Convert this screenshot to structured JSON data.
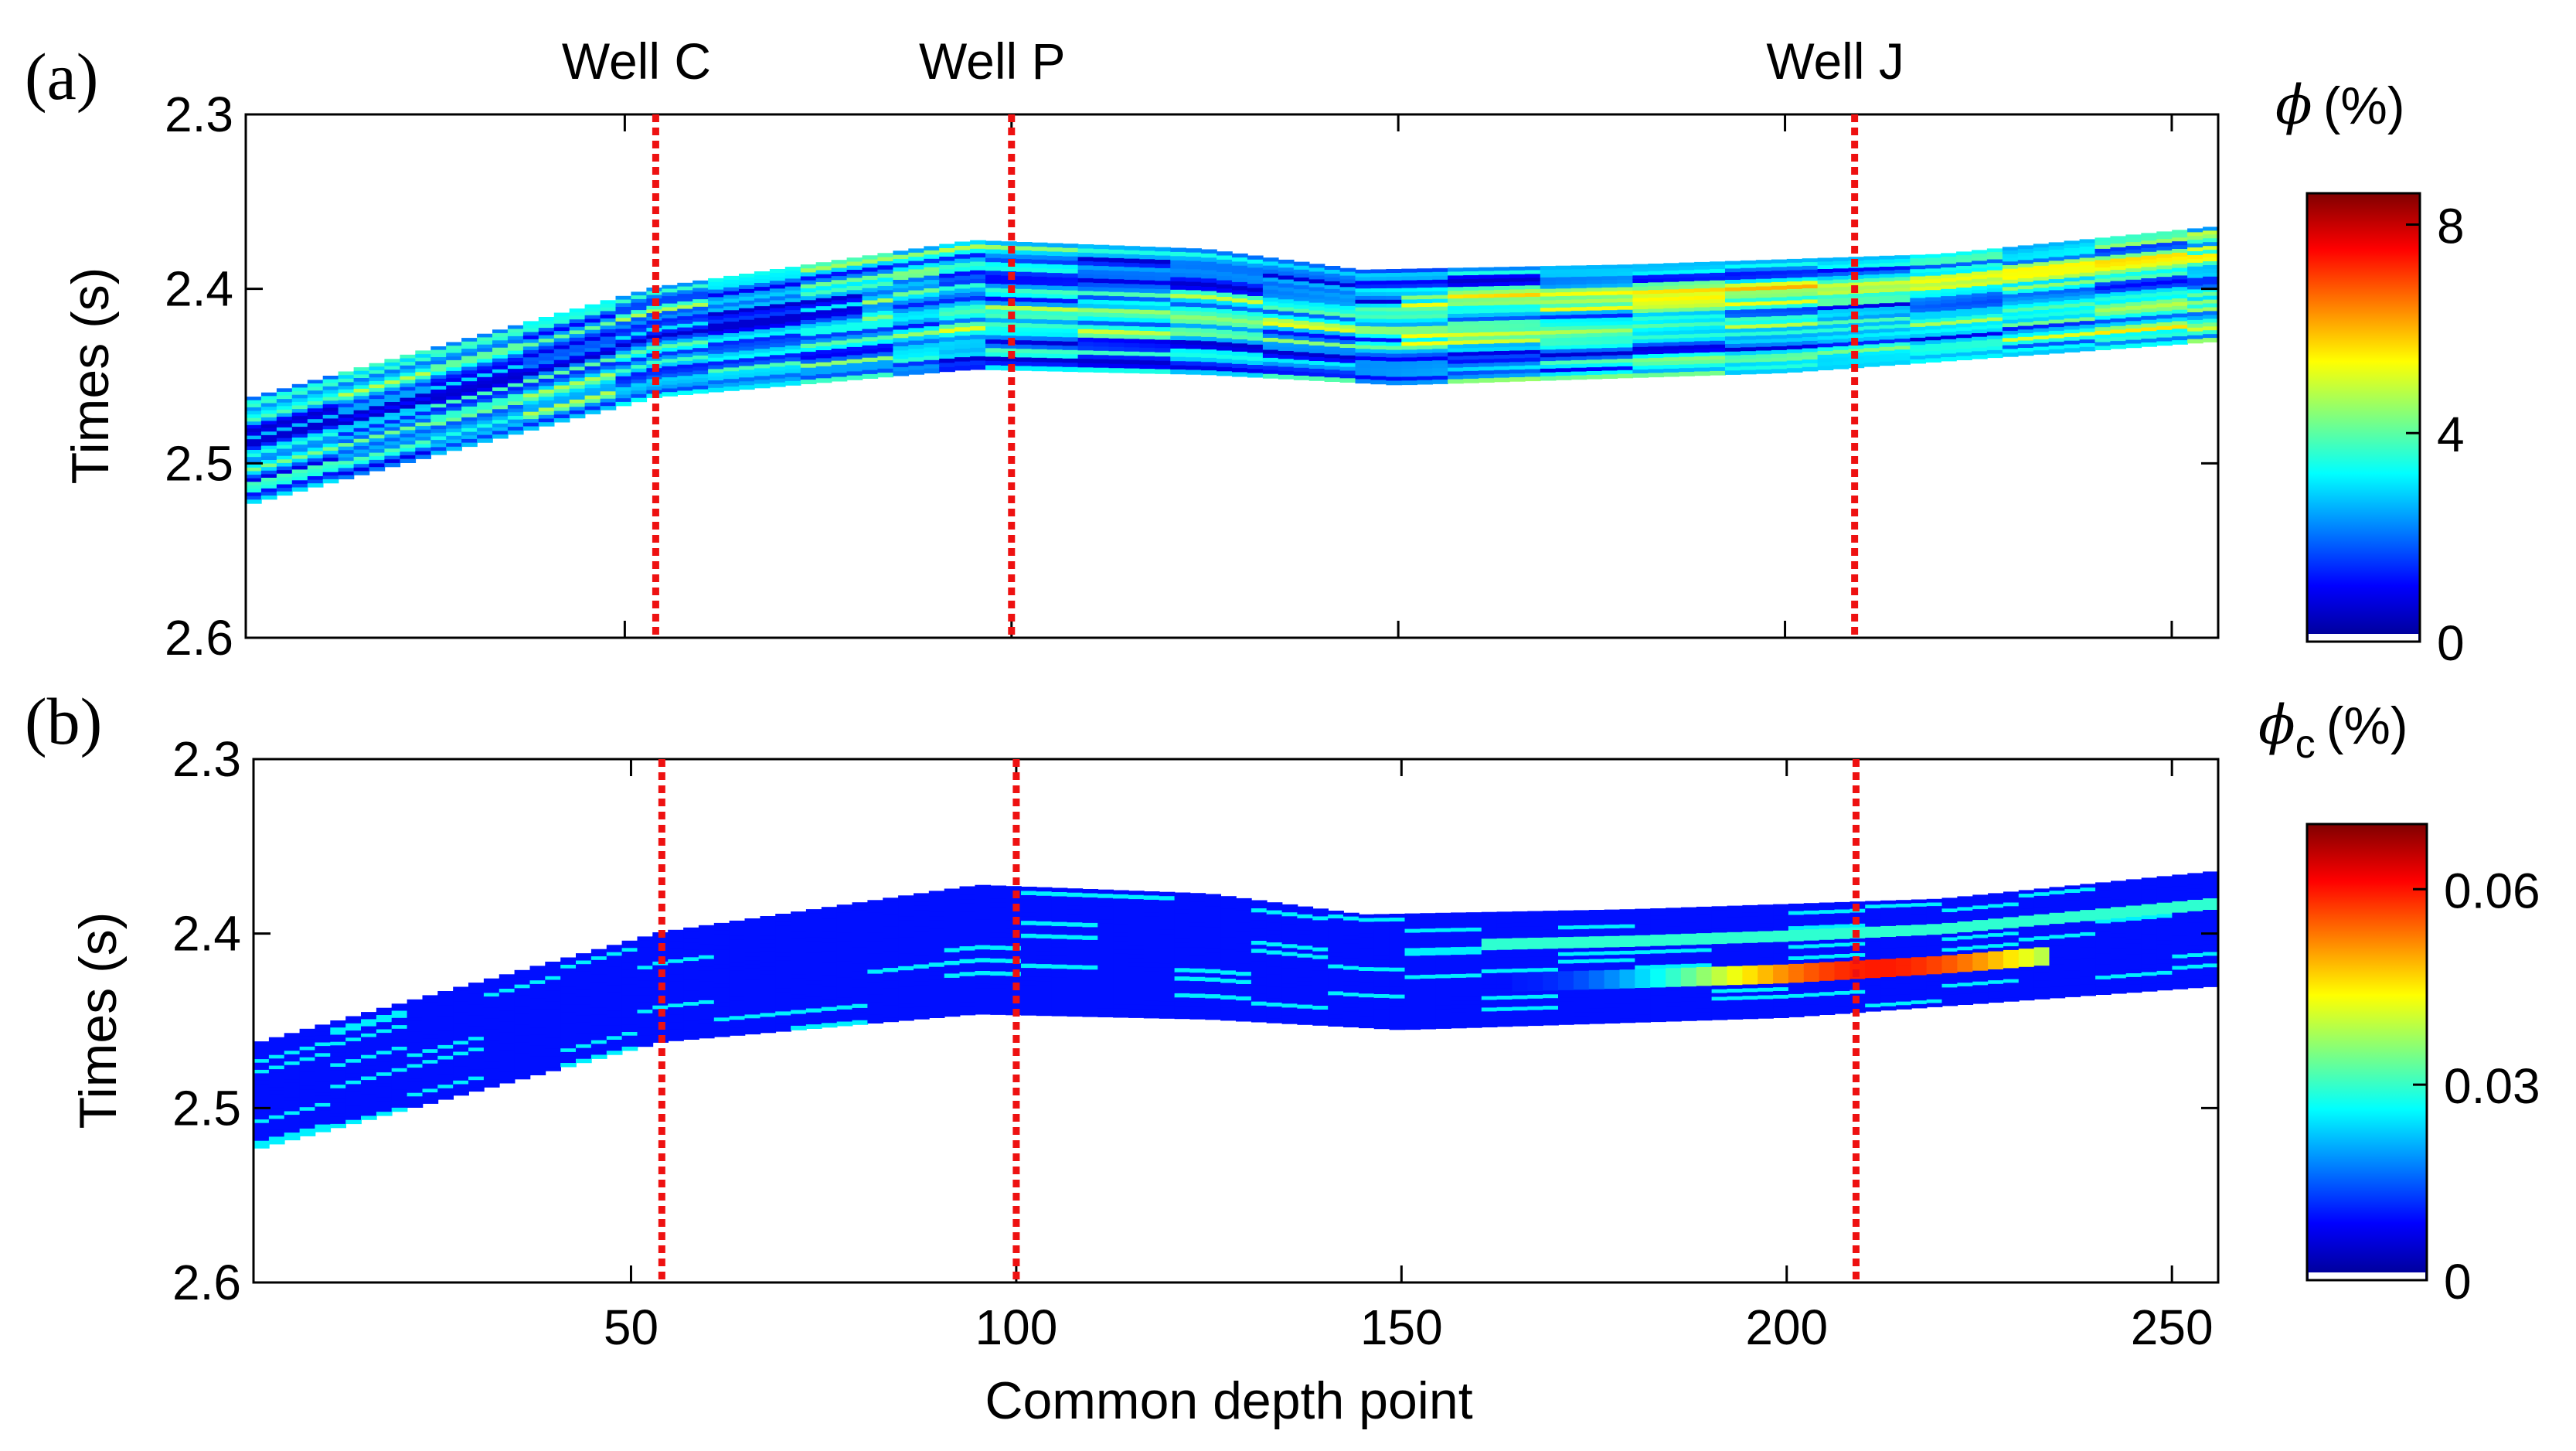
{
  "chart_data": [
    {
      "type": "heatmap",
      "panel": "(a)",
      "title": "",
      "ylabel": "Times (s)",
      "xlabel": "",
      "xlim": [
        1,
        256
      ],
      "ylim": [
        2.3,
        2.6
      ],
      "y_reversed": true,
      "yticks": [
        2.3,
        2.4,
        2.5,
        2.6
      ],
      "ytick_labels": [
        "2.3",
        "2.4",
        "2.5",
        "2.6"
      ],
      "xticks": [
        50,
        100,
        150,
        200,
        250
      ],
      "xtick_labels": [],
      "colorbar": {
        "title_symbol": "ϕ",
        "title_subscript": "",
        "title_unit": "(%)",
        "range": [
          0,
          8.6
        ],
        "ticks": [
          0,
          4,
          8
        ],
        "tick_labels": [
          "0",
          "4",
          "8"
        ],
        "colormap": "jet"
      },
      "wells": [
        {
          "name": "Well C",
          "cdp": 54
        },
        {
          "name": "Well P",
          "cdp": 100
        },
        {
          "name": "Well J",
          "cdp": 209
        }
      ],
      "layer_top_time": [
        [
          1,
          2.463
        ],
        [
          54,
          2.399
        ],
        [
          95,
          2.372
        ],
        [
          125,
          2.377
        ],
        [
          145,
          2.389
        ],
        [
          180,
          2.386
        ],
        [
          220,
          2.38
        ],
        [
          256,
          2.364
        ]
      ],
      "layer_base_time": [
        [
          1,
          2.524
        ],
        [
          54,
          2.462
        ],
        [
          95,
          2.446
        ],
        [
          125,
          2.449
        ],
        [
          150,
          2.455
        ],
        [
          200,
          2.448
        ],
        [
          256,
          2.43
        ]
      ],
      "value_range": [
        0,
        8.6
      ]
    },
    {
      "type": "heatmap",
      "panel": "(b)",
      "title": "",
      "ylabel": "Times (s)",
      "xlabel": "Common depth point",
      "xlim": [
        1,
        256
      ],
      "ylim": [
        2.3,
        2.6
      ],
      "y_reversed": true,
      "yticks": [
        2.3,
        2.4,
        2.5,
        2.6
      ],
      "ytick_labels": [
        "2.3",
        "2.4",
        "2.5",
        "2.6"
      ],
      "xticks": [
        50,
        100,
        150,
        200,
        250
      ],
      "xtick_labels": [
        "50",
        "100",
        "150",
        "200",
        "250"
      ],
      "colorbar": {
        "title_symbol": "ϕ",
        "title_subscript": "c",
        "title_unit": "(%)",
        "range": [
          0,
          0.07
        ],
        "ticks": [
          0,
          0.03,
          0.06
        ],
        "tick_labels": [
          "0",
          "0.03",
          "0.06"
        ],
        "colormap": "jet"
      },
      "wells": [
        {
          "name": "Well C",
          "cdp": 54
        },
        {
          "name": "Well P",
          "cdp": 100
        },
        {
          "name": "Well J",
          "cdp": 209
        }
      ],
      "layer_top_time": [
        [
          1,
          2.463
        ],
        [
          54,
          2.399
        ],
        [
          95,
          2.372
        ],
        [
          125,
          2.377
        ],
        [
          145,
          2.389
        ],
        [
          180,
          2.386
        ],
        [
          220,
          2.38
        ],
        [
          256,
          2.364
        ]
      ],
      "layer_base_time": [
        [
          1,
          2.524
        ],
        [
          54,
          2.462
        ],
        [
          95,
          2.446
        ],
        [
          125,
          2.449
        ],
        [
          150,
          2.455
        ],
        [
          200,
          2.448
        ],
        [
          256,
          2.43
        ]
      ],
      "value_range": [
        0,
        0.07
      ]
    }
  ]
}
